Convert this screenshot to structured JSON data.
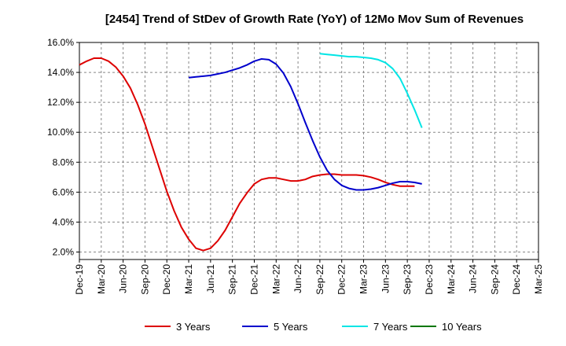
{
  "chart_data": {
    "type": "line",
    "title": "[2454]  Trend of StDev of Growth Rate (YoY) of 12Mo Mov Sum of Revenues",
    "xlabel": "",
    "ylabel": "",
    "ylim": [
      1.5,
      16.0
    ],
    "y_ticks": [
      2.0,
      4.0,
      6.0,
      8.0,
      10.0,
      12.0,
      14.0,
      16.0
    ],
    "y_tick_labels": [
      "2.0%",
      "4.0%",
      "6.0%",
      "8.0%",
      "10.0%",
      "12.0%",
      "14.0%",
      "16.0%"
    ],
    "x_tick_labels": [
      "Dec-19",
      "Mar-20",
      "Jun-20",
      "Sep-20",
      "Dec-20",
      "Mar-21",
      "Jun-21",
      "Sep-21",
      "Dec-21",
      "Mar-22",
      "Jun-22",
      "Sep-22",
      "Dec-22",
      "Mar-23",
      "Jun-23",
      "Sep-23",
      "Dec-23",
      "Mar-24",
      "Jun-24",
      "Sep-24",
      "Dec-24",
      "Mar-25"
    ],
    "grid": true,
    "legend_position": "bottom",
    "series": [
      {
        "name": "3 Years",
        "color": "#dd0000",
        "start_index": 0,
        "values": [
          14.5,
          14.75,
          14.95,
          14.95,
          14.75,
          14.35,
          13.75,
          12.95,
          11.85,
          10.55,
          9.05,
          7.55,
          6.05,
          4.75,
          3.65,
          2.85,
          2.25,
          2.1,
          2.25,
          2.75,
          3.45,
          4.35,
          5.25,
          5.95,
          6.55,
          6.85,
          6.95,
          6.95,
          6.85,
          6.75,
          6.75,
          6.85,
          7.05,
          7.15,
          7.2,
          7.2,
          7.15,
          7.15,
          7.15,
          7.1,
          7.0,
          6.85,
          6.65,
          6.5,
          6.4,
          6.4,
          6.4
        ]
      },
      {
        "name": "5 Years",
        "color": "#0000cc",
        "start_index": 15,
        "values": [
          13.65,
          13.7,
          13.75,
          13.8,
          13.9,
          14.0,
          14.15,
          14.3,
          14.5,
          14.75,
          14.9,
          14.85,
          14.55,
          13.95,
          13.05,
          11.9,
          10.65,
          9.45,
          8.35,
          7.45,
          6.85,
          6.45,
          6.25,
          6.15,
          6.15,
          6.2,
          6.3,
          6.45,
          6.6,
          6.7,
          6.7,
          6.65,
          6.55
        ]
      },
      {
        "name": "7 Years",
        "color": "#00e5e5",
        "start_index": 33,
        "values": [
          15.25,
          15.2,
          15.15,
          15.1,
          15.05,
          15.05,
          15.0,
          14.95,
          14.85,
          14.65,
          14.25,
          13.6,
          12.6,
          11.5,
          10.3
        ]
      },
      {
        "name": "10 Years",
        "color": "#007700",
        "start_index": 0,
        "values": []
      }
    ]
  }
}
